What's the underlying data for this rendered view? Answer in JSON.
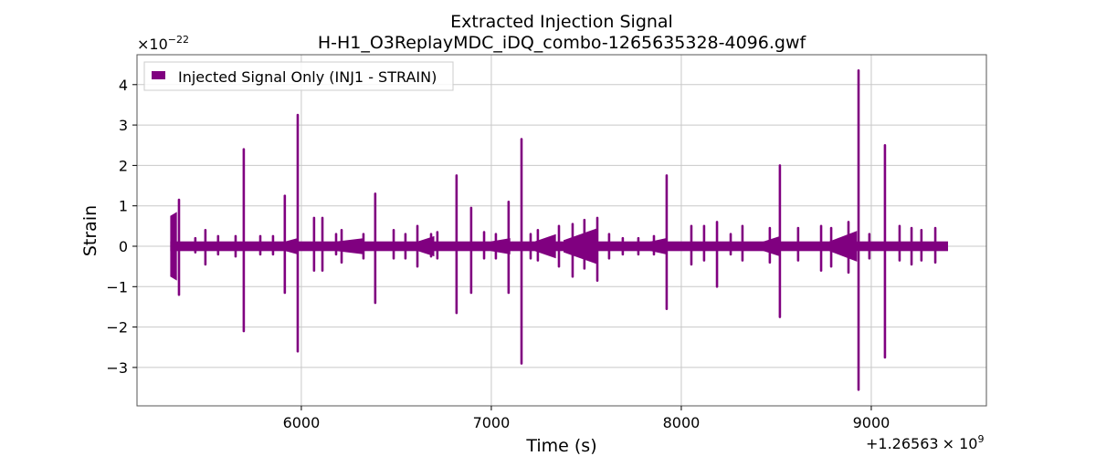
{
  "chart_data": {
    "type": "line",
    "title_line1": "Extracted Injection Signal",
    "title_line2": "H-H1_O3ReplayMDC_iDQ_combo-1265635328-4096.gwf",
    "xlabel": "Time (s)",
    "ylabel": "Strain",
    "x_offset_label": "+1.26563",
    "x_offset_exp_base": "× 10",
    "x_offset_exp": "9",
    "y_scale_base": "×10",
    "y_scale_exp": "−22",
    "xlim": [
      5135,
      9606
    ],
    "ylim": [
      -3.95,
      4.74
    ],
    "xticks": [
      {
        "v": 6000,
        "label": "6000"
      },
      {
        "v": 7000,
        "label": "7000"
      },
      {
        "v": 8000,
        "label": "8000"
      },
      {
        "v": 9000,
        "label": "9000"
      }
    ],
    "yticks": [
      {
        "v": 4,
        "label": "4"
      },
      {
        "v": 3,
        "label": "3"
      },
      {
        "v": 2,
        "label": "2"
      },
      {
        "v": 1,
        "label": "1"
      },
      {
        "v": 0,
        "label": "0"
      },
      {
        "v": -1,
        "label": "−1"
      },
      {
        "v": -2,
        "label": "−2"
      },
      {
        "v": -3,
        "label": "−3"
      }
    ],
    "grid": true,
    "legend": {
      "label": "Injected Signal Only (INJ1 - STRAIN)",
      "placement": "top-left"
    },
    "series_color": "#800080",
    "data_range": [
      5310,
      9404
    ],
    "baseline_amplitude": 0.12,
    "bursts": [
      [
        5310,
        5345,
        0.75,
        0.85
      ],
      [
        5900,
        5980,
        0.1,
        0.2
      ],
      [
        6150,
        6330,
        0.1,
        0.2
      ],
      [
        6600,
        6700,
        0.1,
        0.25
      ],
      [
        7000,
        7100,
        0.12,
        0.2
      ],
      [
        7230,
        7340,
        0.12,
        0.3
      ],
      [
        7380,
        7560,
        0.15,
        0.45
      ],
      [
        7820,
        7920,
        0.1,
        0.2
      ],
      [
        8420,
        8520,
        0.1,
        0.25
      ],
      [
        8780,
        8925,
        0.12,
        0.38
      ]
    ],
    "spikes": [
      [
        5356,
        1.15,
        -1.2
      ],
      [
        5442,
        0.2,
        -0.15
      ],
      [
        5495,
        0.4,
        -0.45
      ],
      [
        5562,
        0.25,
        -0.2
      ],
      [
        5654,
        0.25,
        -0.25
      ],
      [
        5697,
        2.4,
        -2.1
      ],
      [
        5784,
        0.25,
        -0.2
      ],
      [
        5851,
        0.25,
        -0.2
      ],
      [
        5913,
        1.25,
        -1.15
      ],
      [
        5981,
        3.25,
        -2.6
      ],
      [
        6067,
        0.7,
        -0.6
      ],
      [
        6111,
        0.7,
        -0.6
      ],
      [
        6183,
        0.3,
        -0.2
      ],
      [
        6212,
        0.4,
        -0.4
      ],
      [
        6327,
        0.3,
        -0.3
      ],
      [
        6389,
        1.3,
        -1.4
      ],
      [
        6486,
        0.4,
        -0.3
      ],
      [
        6548,
        0.3,
        -0.3
      ],
      [
        6611,
        0.5,
        -0.5
      ],
      [
        6683,
        0.3,
        -0.25
      ],
      [
        6716,
        0.35,
        -0.3
      ],
      [
        6817,
        1.75,
        -1.65
      ],
      [
        6894,
        0.95,
        -1.15
      ],
      [
        6962,
        0.35,
        -0.3
      ],
      [
        7024,
        0.3,
        -0.3
      ],
      [
        7091,
        1.1,
        -1.15
      ],
      [
        7159,
        2.65,
        -2.9
      ],
      [
        7207,
        0.3,
        -0.3
      ],
      [
        7245,
        0.4,
        -0.35
      ],
      [
        7356,
        0.5,
        -0.5
      ],
      [
        7428,
        0.55,
        -0.75
      ],
      [
        7490,
        0.65,
        -0.55
      ],
      [
        7558,
        0.7,
        -0.85
      ],
      [
        7620,
        0.3,
        -0.3
      ],
      [
        7692,
        0.2,
        -0.2
      ],
      [
        7774,
        0.2,
        -0.2
      ],
      [
        7856,
        0.25,
        -0.2
      ],
      [
        7923,
        1.75,
        -1.55
      ],
      [
        8053,
        0.5,
        -0.45
      ],
      [
        8120,
        0.5,
        -0.35
      ],
      [
        8188,
        0.6,
        -1.0
      ],
      [
        8260,
        0.3,
        -0.2
      ],
      [
        8322,
        0.5,
        -0.35
      ],
      [
        8466,
        0.45,
        -0.4
      ],
      [
        8519,
        2.0,
        -1.75
      ],
      [
        8615,
        0.45,
        -0.35
      ],
      [
        8736,
        0.5,
        -0.6
      ],
      [
        8789,
        0.45,
        -0.5
      ],
      [
        8880,
        0.6,
        -0.65
      ],
      [
        8933,
        4.35,
        -3.55
      ],
      [
        8990,
        0.3,
        -0.3
      ],
      [
        9072,
        2.5,
        -2.75
      ],
      [
        9149,
        0.5,
        -0.35
      ],
      [
        9212,
        0.45,
        -0.45
      ],
      [
        9264,
        0.4,
        -0.35
      ],
      [
        9337,
        0.45,
        -0.4
      ]
    ]
  }
}
